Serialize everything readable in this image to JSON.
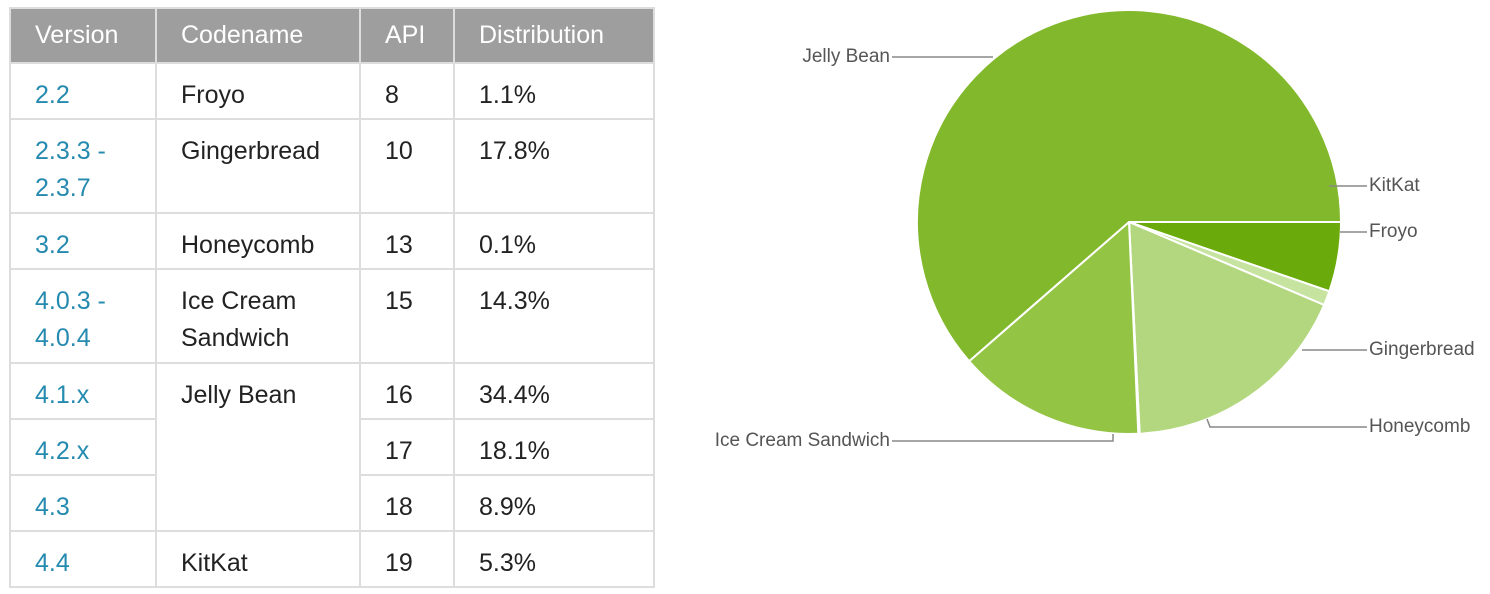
{
  "table": {
    "headers": {
      "version": "Version",
      "codename": "Codename",
      "api": "API",
      "distribution": "Distribution"
    },
    "rows": [
      {
        "version_lines": [
          "2.2"
        ],
        "codename_lines": [
          "Froyo"
        ],
        "api": "8",
        "distribution": "1.1%"
      },
      {
        "version_lines": [
          "2.3.3 -",
          "2.3.7"
        ],
        "codename_lines": [
          "Gingerbread"
        ],
        "api": "10",
        "distribution": "17.8%"
      },
      {
        "version_lines": [
          "3.2"
        ],
        "codename_lines": [
          "Honeycomb"
        ],
        "api": "13",
        "distribution": "0.1%"
      },
      {
        "version_lines": [
          "4.0.3 -",
          "4.0.4"
        ],
        "codename_lines": [
          "Ice Cream",
          "Sandwich"
        ],
        "api": "15",
        "distribution": "14.3%"
      },
      {
        "version_lines": [
          "4.1.x"
        ],
        "codename_lines": [
          "Jelly Bean"
        ],
        "api": "16",
        "distribution": "34.4%"
      },
      {
        "version_lines": [
          "4.2.x"
        ],
        "codename_lines": [],
        "api": "17",
        "distribution": "18.1%"
      },
      {
        "version_lines": [
          "4.3"
        ],
        "codename_lines": [],
        "api": "18",
        "distribution": "8.9%"
      },
      {
        "version_lines": [
          "4.4"
        ],
        "codename_lines": [
          "KitKat"
        ],
        "api": "19",
        "distribution": "5.3%"
      }
    ]
  },
  "chart_data": {
    "type": "pie",
    "title": "",
    "slices": [
      {
        "label": "KitKat",
        "value": 5.3,
        "color": "#6aaa0a"
      },
      {
        "label": "Froyo",
        "value": 1.1,
        "color": "#c6e4a0"
      },
      {
        "label": "Gingerbread",
        "value": 17.8,
        "color": "#b2d77f"
      },
      {
        "label": "Honeycomb",
        "value": 0.1,
        "color": "#b2d77f"
      },
      {
        "label": "Ice Cream Sandwich",
        "value": 14.3,
        "color": "#93c443"
      },
      {
        "label": "Jelly Bean",
        "value": 61.4,
        "color": "#82b82b"
      }
    ],
    "start": "3 o'clock",
    "direction": "clockwise",
    "legend": "callout labels"
  }
}
